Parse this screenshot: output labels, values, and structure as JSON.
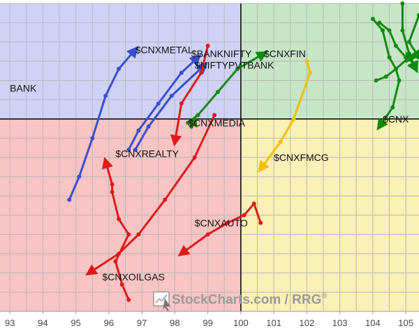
{
  "chart_data": {
    "type": "line",
    "xlim": [
      92.7,
      105.4
    ],
    "ylim": [
      95.0,
      103.0
    ],
    "x_ticks": [
      93,
      94,
      95,
      96,
      97,
      98,
      99,
      100,
      101,
      102,
      103,
      104,
      105
    ],
    "x_tick_labels": [
      "93",
      "94",
      "95",
      "96",
      "97",
      "98",
      "99",
      "100",
      "101",
      "102",
      "103",
      "104",
      "105"
    ],
    "center": [
      100,
      100
    ],
    "grid": true,
    "quadrant_colors": {
      "leading": "#c6e6c6",
      "weakening": "#fbf0b5",
      "lagging": "#f8c4c4",
      "improving": "#cfd1f6"
    },
    "watermark": {
      "brand": "StockCharts.com",
      "separator": " / ",
      "product": "RRG",
      "mark": "®"
    },
    "series": [
      {
        "name": "$CNXMETAL",
        "color": "#3a4fd0",
        "points": [
          [
            94.8,
            97.9
          ],
          [
            95.1,
            98.5
          ],
          [
            95.5,
            99.5
          ],
          [
            95.9,
            100.6
          ],
          [
            96.3,
            101.3
          ],
          [
            96.8,
            101.8
          ]
        ]
      },
      {
        "name": "$CNXREALTY",
        "color": "#3a4fd0",
        "points": [
          [
            96.6,
            99.2
          ],
          [
            96.9,
            99.7
          ],
          [
            97.5,
            100.4
          ],
          [
            98.2,
            101.2
          ],
          [
            98.7,
            101.6
          ]
        ]
      },
      {
        "name": "$NIFTYPVTBANK",
        "color": "#3a4fd0",
        "points": [
          [
            96.8,
            99.2
          ],
          [
            97.2,
            99.8
          ],
          [
            97.9,
            100.6
          ],
          [
            98.9,
            101.4
          ]
        ]
      },
      {
        "name": "$BANKNIFTY",
        "color": "#e31818",
        "points": [
          [
            99.0,
            101.9
          ],
          [
            98.8,
            101.2
          ],
          [
            98.2,
            100.4
          ],
          [
            98.0,
            99.4
          ]
        ]
      },
      {
        "name": "$CNXFIN",
        "color": "#0f8a0f",
        "points": [
          [
            98.4,
            99.9
          ],
          [
            98.7,
            100.1
          ],
          [
            99.3,
            100.7
          ],
          [
            99.9,
            101.3
          ],
          [
            100.7,
            101.7
          ]
        ]
      },
      {
        "name": "$CNXMEDIA",
        "color": "#0f8a0f",
        "points": [
          [
            98.5,
            99.8
          ],
          [
            98.6,
            100.0
          ]
        ]
      },
      {
        "name": "$CNXFMCG",
        "color": "#f0c000",
        "points": [
          [
            102.0,
            101.5
          ],
          [
            102.1,
            101.2
          ],
          [
            101.6,
            100.0
          ],
          [
            101.2,
            99.4
          ],
          [
            100.6,
            98.7
          ]
        ]
      },
      {
        "name": "$CNXAUTO",
        "color": "#e31818",
        "points": [
          [
            100.6,
            97.3
          ],
          [
            100.4,
            97.8
          ],
          [
            100.1,
            97.5
          ],
          [
            99.6,
            97.3
          ],
          [
            99.0,
            97.0
          ],
          [
            98.2,
            96.5
          ]
        ]
      },
      {
        "name": "$CNXOILGAS",
        "color": "#e31818",
        "points": [
          [
            96.6,
            95.3
          ],
          [
            96.4,
            95.7
          ],
          [
            96.2,
            96.3
          ],
          [
            96.6,
            97.0
          ],
          [
            96.3,
            97.4
          ],
          [
            96.1,
            98.1
          ],
          [
            96.1,
            98.3
          ],
          [
            95.9,
            98.9
          ]
        ]
      },
      {
        "name": "$CNXOILGAS-2",
        "color": "#e31818",
        "points": [
          [
            99.2,
            100.1
          ],
          [
            98.6,
            99.0
          ],
          [
            97.7,
            97.9
          ],
          [
            96.9,
            97.0
          ],
          [
            96.3,
            96.5
          ],
          [
            95.4,
            96.0
          ]
        ]
      },
      {
        "name": "$CNX...",
        "color": "#0f8a0f",
        "points": [
          [
            104.0,
            102.6
          ],
          [
            104.3,
            102.3
          ],
          [
            104.5,
            101.6
          ],
          [
            104.7,
            101.3
          ],
          [
            104.8,
            101.0
          ],
          [
            104.6,
            100.3
          ],
          [
            104.2,
            99.8
          ]
        ]
      },
      {
        "name": "$CNX-2",
        "color": "#0f8a0f",
        "points": [
          [
            104.9,
            103.0
          ],
          [
            104.9,
            102.3
          ],
          [
            105.1,
            101.7
          ],
          [
            105.3,
            101.3
          ]
        ]
      },
      {
        "name": "$CNX-3",
        "color": "#0f8a0f",
        "points": [
          [
            105.4,
            102.7
          ],
          [
            105.1,
            102.0
          ],
          [
            105.4,
            101.6
          ]
        ]
      },
      {
        "name": "$CNX-4",
        "color": "#0f8a0f",
        "points": [
          [
            104.1,
            101.0
          ],
          [
            104.4,
            101.1
          ],
          [
            104.7,
            101.3
          ],
          [
            105.1,
            101.6
          ],
          [
            105.3,
            101.3
          ]
        ]
      },
      {
        "name": "$CNX-5",
        "color": "#0f8a0f",
        "points": [
          [
            104.2,
            102.5
          ],
          [
            104.5,
            102.3
          ],
          [
            104.7,
            101.9
          ],
          [
            105.0,
            101.6
          ],
          [
            105.2,
            101.6
          ]
        ]
      }
    ],
    "labels": [
      {
        "text": "BANK",
        "x": 93.0,
        "y": 100.8
      },
      {
        "text": "$CNXMETAL",
        "x": 96.8,
        "y": 101.8
      },
      {
        "text": "$BANKNIFTY",
        "x": 98.5,
        "y": 101.7
      },
      {
        "text": "$CNXFIN",
        "x": 100.7,
        "y": 101.7
      },
      {
        "text": "$NIFTYPVTBANK",
        "x": 98.6,
        "y": 101.4
      },
      {
        "text": "$CNXMEDIA",
        "x": 98.4,
        "y": 99.9
      },
      {
        "text": "$CNXREALTY",
        "x": 96.2,
        "y": 99.1
      },
      {
        "text": "$CNXFMCG",
        "x": 101.0,
        "y": 99.0
      },
      {
        "text": "$CNXAUTO",
        "x": 98.6,
        "y": 97.3
      },
      {
        "text": "$CNXOILGAS",
        "x": 95.8,
        "y": 95.9
      },
      {
        "text": "$CNX",
        "x": 104.3,
        "y": 100.0
      }
    ]
  }
}
